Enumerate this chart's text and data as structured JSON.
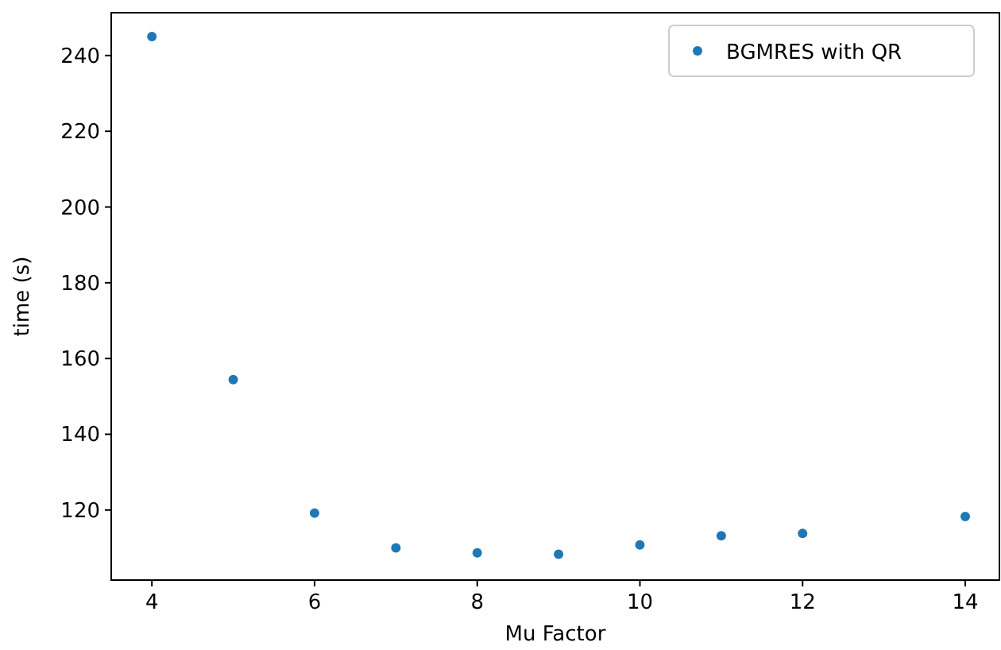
{
  "chart_data": {
    "type": "scatter",
    "xlabel": "Mu Factor",
    "ylabel": "time (s)",
    "x": [
      4,
      5,
      6,
      7,
      8,
      9,
      10,
      11,
      12,
      14
    ],
    "series": [
      {
        "name": "BGMRES with QR",
        "color": "#1f77b4",
        "values": [
          245.0,
          154.4,
          119.2,
          110.0,
          108.7,
          108.3,
          110.8,
          113.2,
          113.8,
          118.3
        ]
      }
    ],
    "xlim": [
      3.5,
      14.42
    ],
    "ylim": [
      101.5,
      251.3
    ],
    "xticks": [
      4,
      6,
      8,
      10,
      12,
      14
    ],
    "yticks": [
      120,
      140,
      160,
      180,
      200,
      220,
      240
    ],
    "legend": "top right",
    "marker": "circle",
    "grid": false
  }
}
